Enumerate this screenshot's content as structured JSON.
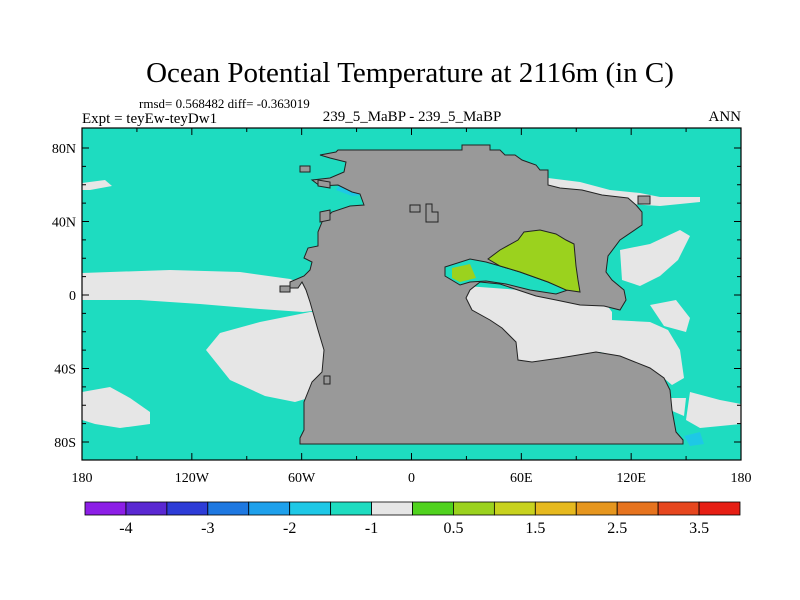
{
  "title": "Ocean Potential Temperature at 2116m (in C)",
  "stats": "rmsd= 0.568482 diff= -0.363019",
  "expt": "Expt = teyEw-teyDw1",
  "subtitle": "239_5_MaBP - 239_5_MaBP",
  "season": "ANN",
  "map": {
    "land_color": "#999999",
    "lat_labels": [
      {
        "lat": 80,
        "text": "80N"
      },
      {
        "lat": 40,
        "text": "40N"
      },
      {
        "lat": 0,
        "text": "0"
      },
      {
        "lat": -40,
        "text": "40S"
      },
      {
        "lat": -80,
        "text": "80S"
      }
    ],
    "lon_labels": [
      {
        "lon": -180,
        "text": "180"
      },
      {
        "lon": -120,
        "text": "120W"
      },
      {
        "lon": -60,
        "text": "60W"
      },
      {
        "lon": 0,
        "text": "0"
      },
      {
        "lon": 60,
        "text": "60E"
      },
      {
        "lon": 120,
        "text": "120E"
      },
      {
        "lon": 180,
        "text": "180"
      }
    ]
  },
  "colorbar": {
    "colors": [
      "#8c1ee6",
      "#5a28d2",
      "#2d3cd7",
      "#1e78e1",
      "#1ea0eb",
      "#1ec8e6",
      "#1edcc0",
      "#e6e6e6",
      "#50d21e",
      "#9bd21e",
      "#c8d21e",
      "#e6b91e",
      "#e6961e",
      "#e6731e",
      "#e6461e",
      "#e61e14"
    ],
    "labels": [
      "-4",
      "-3",
      "-2",
      "-1",
      "0.5",
      "1.5",
      "2.5",
      "3.5"
    ]
  }
}
